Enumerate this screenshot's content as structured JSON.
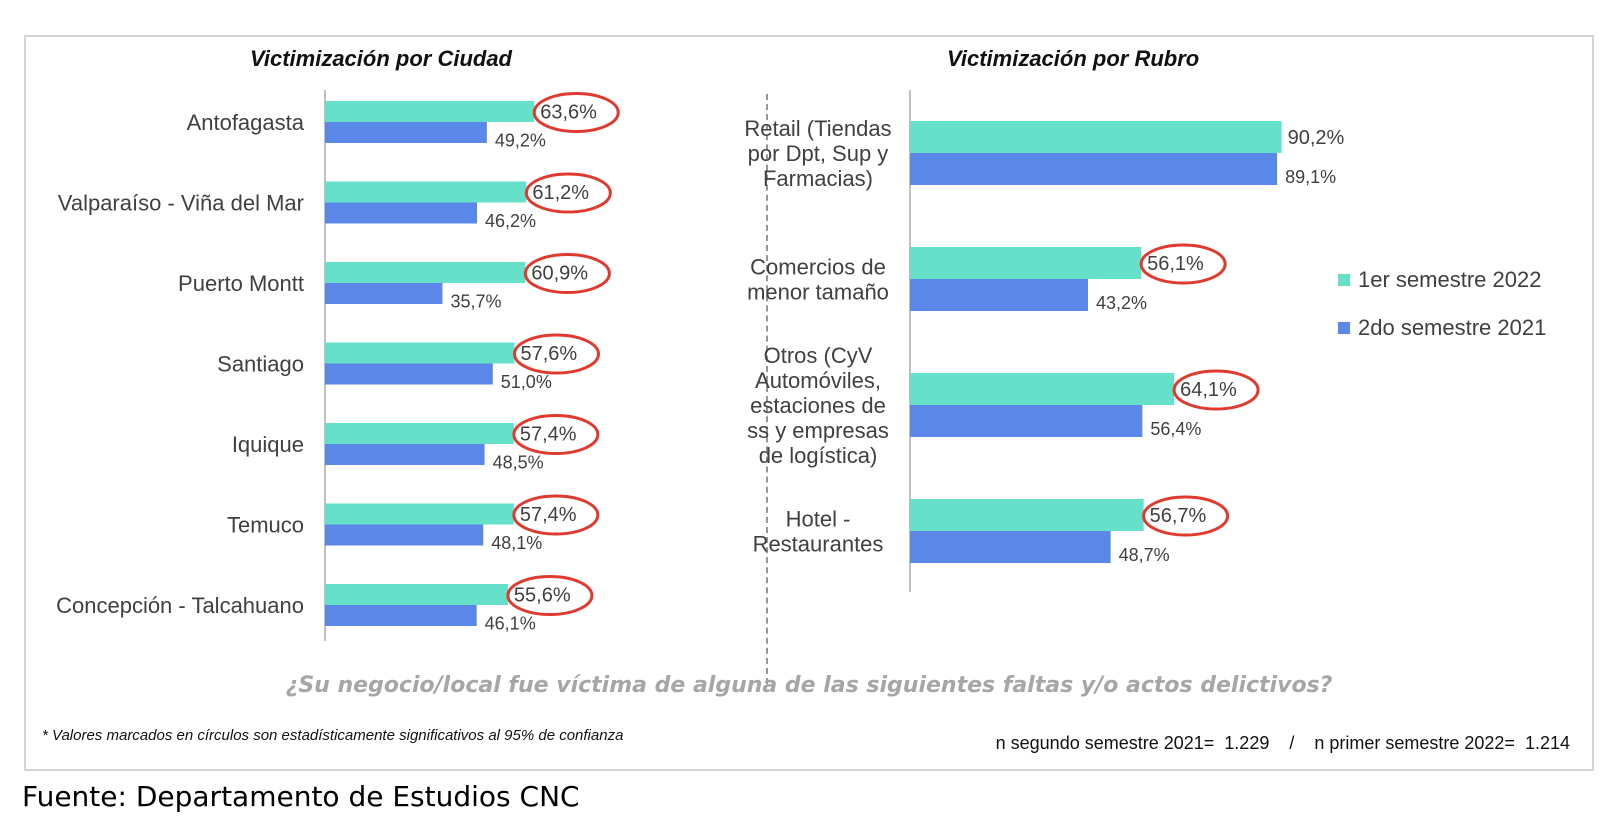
{
  "left_title": "Victimización por Ciudad",
  "right_title": "Victimización por Rubro",
  "question": "¿Su negocio/local fue víctima de alguna de las siguientes faltas y/o actos delictivos?",
  "footnote": "* Valores marcados en círculos son estadísticamente significativos al 95% de confianza",
  "sample_note": "n segundo semestre 2021=  1.229    /    n primer semestre 2022=  1.214",
  "source": "Fuente: Departamento de Estudios CNC",
  "colors": {
    "series_2022": "#66e0c8",
    "series_2021": "#5b87e8",
    "highlight": "#e03a2f"
  },
  "chart_data": [
    {
      "type": "bar",
      "orientation": "horizontal",
      "title": "Victimización por Ciudad",
      "categories": [
        "Antofagasta",
        "Valparaíso - Viña del Mar",
        "Puerto Montt",
        "Santiago",
        "Iquique",
        "Temuco",
        "Concepción - Talcahuano"
      ],
      "series": [
        {
          "name": "1er semestre 2022",
          "values": [
            63.6,
            61.2,
            60.9,
            57.6,
            57.4,
            57.4,
            55.6
          ],
          "labels": [
            "63,6%",
            "61,2%",
            "60,9%",
            "57,6%",
            "57,4%",
            "57,4%",
            "55,6%"
          ]
        },
        {
          "name": "2do semestre 2021",
          "values": [
            49.2,
            46.2,
            35.7,
            51.0,
            48.5,
            48.1,
            46.1
          ],
          "labels": [
            "49,2%",
            "46,2%",
            "35,7%",
            "51,0%",
            "48,5%",
            "48,1%",
            "46,1%"
          ]
        }
      ],
      "significant": [
        true,
        true,
        true,
        true,
        true,
        true,
        true
      ],
      "xlim": [
        0,
        100
      ]
    },
    {
      "type": "bar",
      "orientation": "horizontal",
      "title": "Victimización por Rubro",
      "categories": [
        [
          "Retail (Tiendas",
          "por Dpt, Sup y",
          "Farmacias)"
        ],
        [
          "Comercios de",
          "menor tamaño"
        ],
        [
          "Otros (CyV",
          "Automóviles,",
          "estaciones de",
          "ss y empresas",
          "de logística)"
        ],
        [
          "Hotel -",
          "Restaurantes"
        ]
      ],
      "series": [
        {
          "name": "1er semestre 2022",
          "values": [
            90.2,
            56.1,
            64.1,
            56.7
          ],
          "labels": [
            "90,2%",
            "56,1%",
            "64,1%",
            "56,7%"
          ]
        },
        {
          "name": "2do semestre 2021",
          "values": [
            89.1,
            43.2,
            56.4,
            48.7
          ],
          "labels": [
            "89,1%",
            "43,2%",
            "56,4%",
            "48,7%"
          ]
        }
      ],
      "significant": [
        false,
        true,
        true,
        true
      ],
      "xlim": [
        0,
        100
      ],
      "legend": "right"
    }
  ]
}
